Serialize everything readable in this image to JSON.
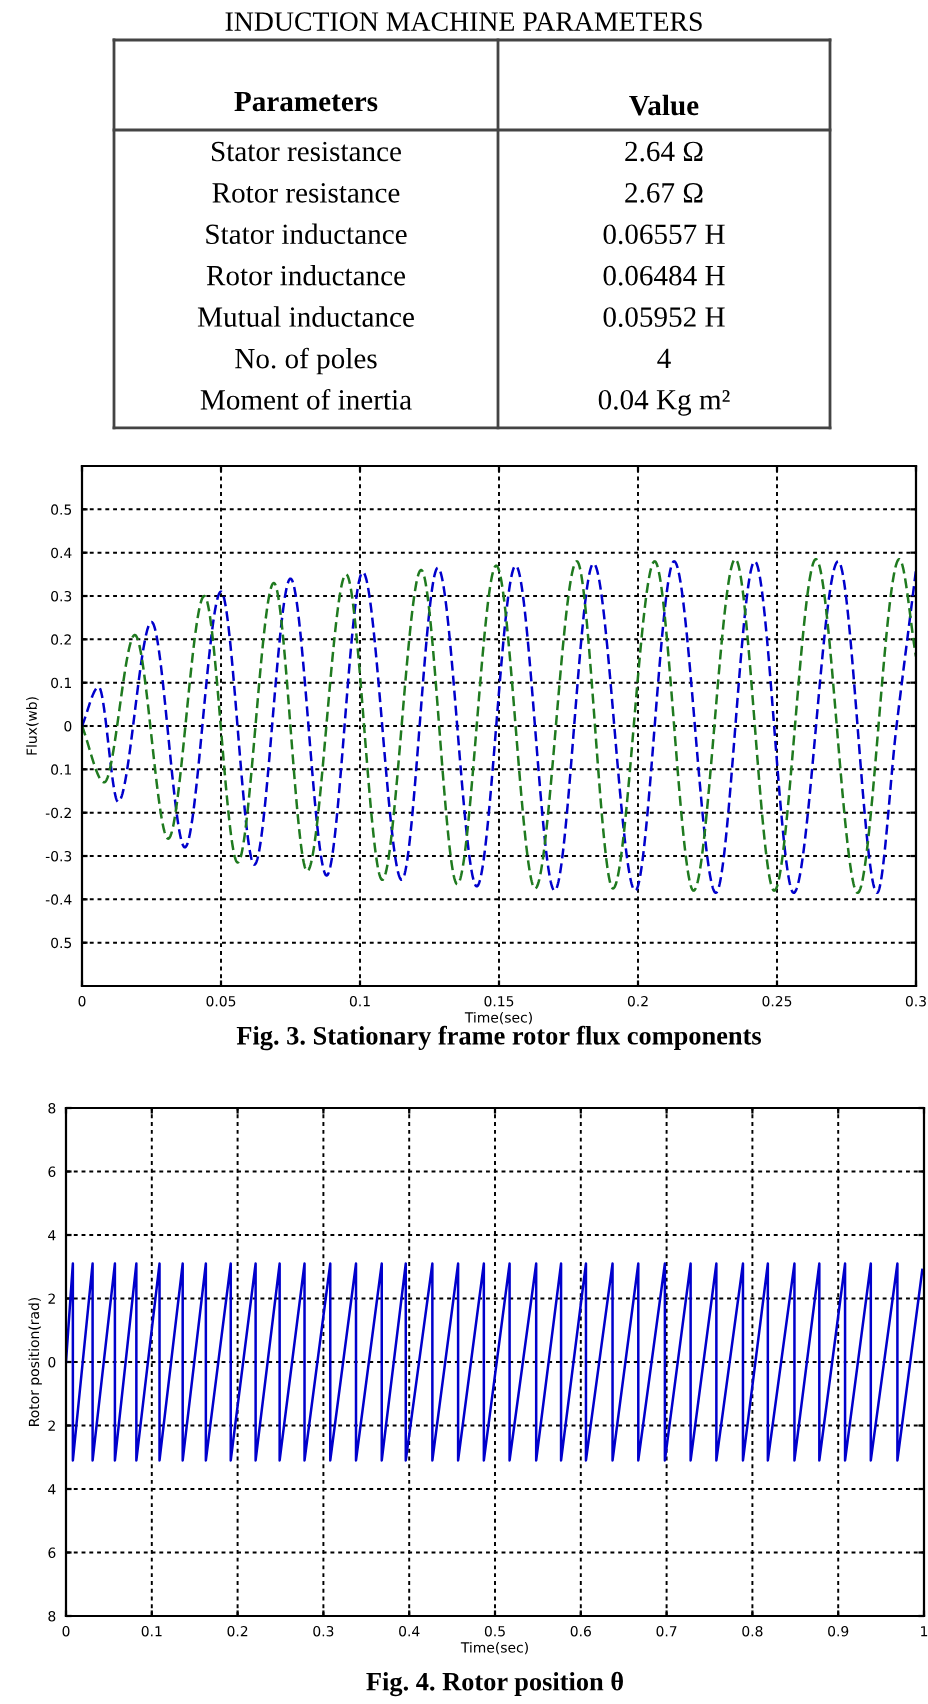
{
  "chart_data": [
    {
      "type": "other",
      "title": "INDUCTION MACHINE PARAMETERS",
      "annotations": [
        "Parameters",
        "Value",
        "Stator resistance",
        "2.64 Ω",
        "Rotor resistance",
        "2.67 Ω",
        "Stator inductance",
        "0.06557 H",
        "Rotor inductance",
        "0.06484 H",
        "Mutual inductance",
        "0.05952 H",
        "No. of poles",
        "4",
        "Moment of inertia",
        "0.04 Kg m²"
      ]
    },
    {
      "type": "line",
      "title": "Fig. 3. Stationary frame rotor flux components",
      "xlabel": "Time(sec)",
      "ylabel": "Flux(wb)",
      "xlim": [
        0,
        0.3
      ],
      "ylim": [
        -0.6,
        0.6
      ],
      "xticks": [
        0,
        0.05,
        0.1,
        0.15,
        0.2,
        0.25,
        0.3
      ],
      "yticks": [
        0.5,
        0.4,
        0.3,
        0.2,
        0.1,
        0,
        {
          "value": -0.1,
          "label": "0.1"
        },
        -0.2,
        -0.3,
        -0.4,
        {
          "value": -0.5,
          "label": "0.5"
        }
      ],
      "grid": true,
      "line_style": "dashed",
      "series": [
        {
          "color": "#0000cc",
          "x": [
            0,
            0.006,
            0.013,
            0.025,
            0.037,
            0.05,
            0.062,
            0.075,
            0.088,
            0.101,
            0.115,
            0.128,
            0.142,
            0.156,
            0.17,
            0.184,
            0.199,
            0.213,
            0.228,
            0.242,
            0.256,
            0.272,
            0.286,
            0.293,
            0.3
          ],
          "values": [
            0,
            0.09,
            -0.175,
            0.24,
            -0.28,
            0.31,
            -0.32,
            0.34,
            -0.345,
            0.355,
            -0.355,
            0.365,
            -0.37,
            0.37,
            -0.38,
            0.375,
            -0.38,
            0.38,
            -0.385,
            0.38,
            -0.385,
            0.38,
            -0.385,
            0,
            0.36
          ]
        },
        {
          "color": "#1f7a1f",
          "x": [
            0,
            0.008,
            0.019,
            0.031,
            0.044,
            0.056,
            0.069,
            0.081,
            0.095,
            0.108,
            0.122,
            0.135,
            0.149,
            0.163,
            0.178,
            0.191,
            0.206,
            0.22,
            0.235,
            0.249,
            0.264,
            0.279,
            0.294,
            0.3
          ],
          "values": [
            0,
            -0.13,
            0.21,
            -0.26,
            0.3,
            -0.315,
            0.33,
            -0.335,
            0.35,
            -0.355,
            0.36,
            -0.365,
            0.37,
            -0.375,
            0.38,
            -0.375,
            0.38,
            -0.38,
            0.385,
            -0.38,
            0.385,
            -0.385,
            0.385,
            0.16
          ]
        }
      ]
    },
    {
      "type": "line",
      "title": "Fig. 4. Rotor position θ",
      "xlabel": "Time(sec)",
      "ylabel": "Rotor position(rad)",
      "xlim": [
        0,
        1
      ],
      "ylim": [
        -8,
        8
      ],
      "xticks": [
        0,
        0.1,
        0.2,
        0.3,
        0.4,
        0.5,
        0.6,
        0.7,
        0.8,
        0.9,
        1
      ],
      "yticks": [
        8,
        6,
        4,
        2,
        0,
        {
          "value": -2,
          "label": "2"
        },
        {
          "value": -4,
          "label": "4"
        },
        {
          "value": -6,
          "label": "6"
        },
        {
          "value": -8,
          "label": "8"
        }
      ],
      "grid": true,
      "line_style": "solid",
      "series": [
        {
          "color": "#0000cc",
          "x": [
            0,
            0.008,
            0.008,
            0.031,
            0.031,
            0.057,
            0.057,
            0.082,
            0.082,
            0.109,
            0.109,
            0.136,
            0.136,
            0.163,
            0.163,
            0.192,
            0.192,
            0.221,
            0.221,
            0.249,
            0.249,
            0.278,
            0.278,
            0.308,
            0.308,
            0.338,
            0.338,
            0.368,
            0.368,
            0.396,
            0.396,
            0.427,
            0.427,
            0.457,
            0.457,
            0.487,
            0.487,
            0.517,
            0.517,
            0.548,
            0.548,
            0.577,
            0.577,
            0.606,
            0.606,
            0.637,
            0.637,
            0.667,
            0.667,
            0.698,
            0.698,
            0.728,
            0.728,
            0.758,
            0.758,
            0.789,
            0.789,
            0.818,
            0.818,
            0.849,
            0.849,
            0.878,
            0.878,
            0.908,
            0.908,
            0.938,
            0.938,
            0.969,
            0.969,
            0.998
          ],
          "values": [
            0,
            3.1,
            -3.1,
            3.1,
            -3.1,
            3.1,
            -3.1,
            3.1,
            -3.1,
            3.1,
            -3.1,
            3.1,
            -3.1,
            3.1,
            -3.1,
            3.1,
            -3.1,
            3.1,
            -3.1,
            3.1,
            -3.1,
            3.1,
            -3.1,
            3.1,
            -3.1,
            3.1,
            -3.1,
            3.1,
            -3.1,
            3.1,
            -3.1,
            3.1,
            -3.1,
            3.1,
            -3.1,
            3.1,
            -3.1,
            3.1,
            -3.1,
            3.1,
            -3.1,
            3.1,
            -3.1,
            3.1,
            -3.1,
            3.1,
            -3.1,
            3.1,
            -3.1,
            3.1,
            -3.1,
            3.1,
            -3.1,
            3.1,
            -3.1,
            3.1,
            -3.1,
            3.1,
            -3.1,
            3.1,
            -3.1,
            3.1,
            -3.1,
            3.1,
            -3.1,
            3.1,
            -3.1,
            3.1,
            -3.1,
            2.9
          ]
        }
      ]
    }
  ]
}
